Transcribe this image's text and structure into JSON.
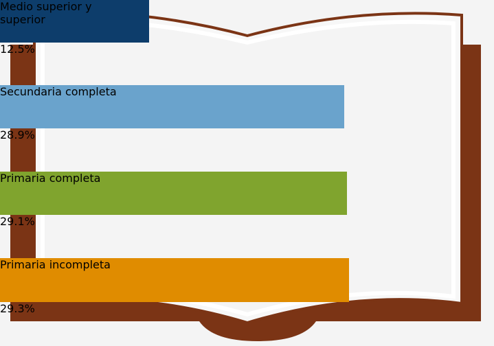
{
  "chart_data": {
    "type": "bar",
    "orientation": "horizontal",
    "categories": [
      "Medio superior y superior",
      "Secundaria completa",
      "Primaria completa",
      "Primaria incompleta"
    ],
    "values": [
      12.5,
      28.9,
      29.1,
      29.3
    ],
    "value_labels": [
      "12.5%",
      "28.9%",
      "29.1%",
      "29.3%"
    ],
    "colors": [
      "#0d3d6b",
      "#6aa3cc",
      "#80a42e",
      "#e08c00"
    ]
  }
}
